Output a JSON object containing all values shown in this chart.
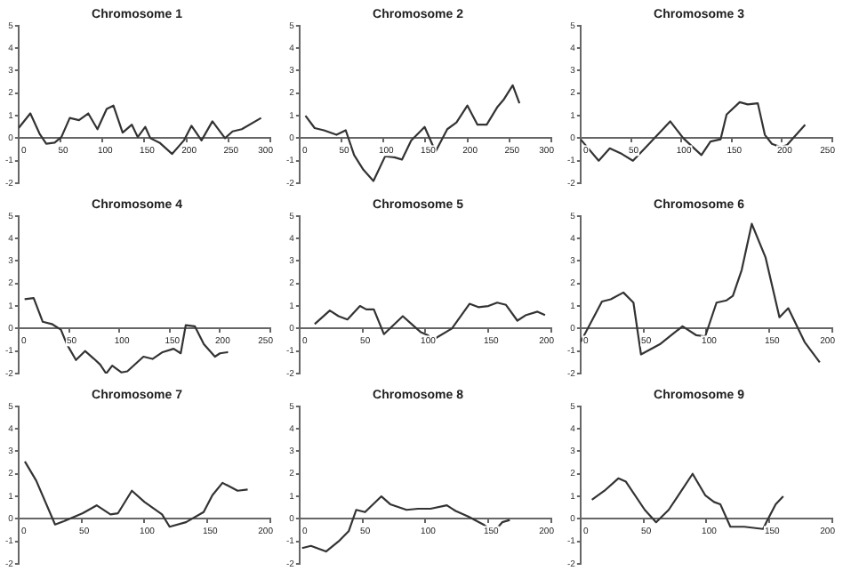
{
  "chart_data": [
    {
      "type": "line",
      "title": "Chromosome 1",
      "color": "#333333",
      "xlim": [
        0,
        300
      ],
      "xticks": [
        0,
        50,
        100,
        150,
        200,
        250,
        300
      ],
      "ylim": [
        -2,
        5
      ],
      "yticks": [
        -2,
        -1,
        0,
        1,
        2,
        3,
        4,
        5
      ],
      "x": [
        0,
        14,
        25,
        33,
        43,
        51,
        61,
        72,
        83,
        94,
        105,
        113,
        124,
        135,
        142,
        151,
        157,
        168,
        183,
        197,
        206,
        218,
        231,
        246,
        255,
        266,
        289
      ],
      "values": [
        0.45,
        1.1,
        0.2,
        -0.25,
        -0.2,
        0.05,
        0.9,
        0.8,
        1.1,
        0.4,
        1.3,
        1.45,
        0.25,
        0.6,
        0.05,
        0.5,
        0,
        -0.2,
        -0.7,
        -0.1,
        0.55,
        -0.1,
        0.75,
        0,
        0.3,
        0.4,
        0.9
      ]
    },
    {
      "type": "line",
      "title": "Chromosome 2",
      "color": "#333333",
      "xlim": [
        0,
        300
      ],
      "xticks": [
        0,
        50,
        100,
        150,
        200,
        250,
        300
      ],
      "ylim": [
        -2,
        5
      ],
      "yticks": [
        -2,
        -1,
        0,
        1,
        2,
        3,
        4,
        5
      ],
      "x": [
        7,
        18,
        29,
        44,
        55,
        65,
        76,
        88,
        102,
        113,
        122,
        133,
        149,
        162,
        176,
        187,
        200,
        212,
        223,
        236,
        243,
        254,
        262
      ],
      "values": [
        1.0,
        0.45,
        0.35,
        0.15,
        0.35,
        -0.75,
        -1.4,
        -1.9,
        -0.8,
        -0.85,
        -0.95,
        -0.1,
        0.5,
        -0.6,
        0.4,
        0.7,
        1.45,
        0.6,
        0.6,
        1.4,
        1.7,
        2.35,
        1.55
      ]
    },
    {
      "type": "line",
      "title": "Chromosome 3",
      "color": "#333333",
      "xlim": [
        0,
        250
      ],
      "xticks": [
        0,
        50,
        100,
        150,
        200,
        250
      ],
      "ylim": [
        -2,
        5
      ],
      "yticks": [
        -2,
        -1,
        0,
        1,
        2,
        3,
        4,
        5
      ],
      "x": [
        0,
        18,
        29,
        41,
        52,
        68,
        89,
        102,
        120,
        129,
        139,
        145,
        158,
        166,
        176,
        183,
        190,
        199,
        205,
        223
      ],
      "values": [
        -0.05,
        -1.0,
        -0.45,
        -0.7,
        -1.0,
        -0.25,
        0.75,
        0,
        -0.75,
        -0.15,
        -0.05,
        1.05,
        1.6,
        1.5,
        1.55,
        0.15,
        -0.25,
        -0.4,
        -0.3,
        0.6
      ]
    },
    {
      "type": "line",
      "title": "Chromosome 4",
      "color": "#333333",
      "xlim": [
        0,
        250
      ],
      "xticks": [
        0,
        50,
        100,
        150,
        200,
        250
      ],
      "ylim": [
        -2,
        5
      ],
      "yticks": [
        -2,
        -1,
        0,
        1,
        2,
        3,
        4,
        5
      ],
      "x": [
        6,
        15,
        24,
        33,
        42,
        48,
        57,
        66,
        75,
        81,
        87,
        93,
        102,
        108,
        124,
        133,
        143,
        154,
        161,
        166,
        175,
        184,
        195,
        200,
        208
      ],
      "values": [
        1.3,
        1.35,
        0.3,
        0.2,
        -0.05,
        -0.7,
        -1.4,
        -1.0,
        -1.35,
        -1.6,
        -2.0,
        -1.65,
        -1.95,
        -1.9,
        -1.25,
        -1.35,
        -1.05,
        -0.9,
        -1.1,
        0.15,
        0.1,
        -0.7,
        -1.25,
        -1.1,
        -1.05
      ]
    },
    {
      "type": "line",
      "title": "Chromosome 5",
      "color": "#333333",
      "xlim": [
        0,
        200
      ],
      "xticks": [
        0,
        50,
        100,
        150,
        200
      ],
      "ylim": [
        -2,
        5
      ],
      "yticks": [
        -2,
        -1,
        0,
        1,
        2,
        3,
        4,
        5
      ],
      "x": [
        12,
        24,
        31,
        38,
        48,
        53,
        59,
        67,
        82,
        89,
        96,
        102,
        106,
        121,
        135,
        142,
        150,
        157,
        164,
        173,
        180,
        189,
        195
      ],
      "values": [
        0.2,
        0.8,
        0.55,
        0.4,
        1.0,
        0.85,
        0.85,
        -0.25,
        0.55,
        0.2,
        -0.15,
        -0.3,
        -0.5,
        0,
        1.1,
        0.95,
        1.0,
        1.15,
        1.05,
        0.35,
        0.6,
        0.75,
        0.6
      ]
    },
    {
      "type": "line",
      "title": "Chromosome 6",
      "color": "#333333",
      "xlim": [
        0,
        200
      ],
      "xticks": [
        0,
        50,
        100,
        150,
        200
      ],
      "ylim": [
        -2,
        5
      ],
      "yticks": [
        -2,
        -1,
        0,
        1,
        2,
        3,
        4,
        5
      ],
      "x": [
        0,
        17,
        24,
        34,
        42,
        48,
        63,
        72,
        81,
        92,
        99,
        108,
        116,
        121,
        128,
        136,
        147,
        158,
        165,
        178,
        190
      ],
      "values": [
        -0.6,
        1.2,
        1.3,
        1.6,
        1.15,
        -1.15,
        -0.7,
        -0.3,
        0.1,
        -0.3,
        -0.35,
        1.15,
        1.25,
        1.45,
        2.6,
        4.65,
        3.15,
        0.5,
        0.9,
        -0.6,
        -1.5
      ]
    },
    {
      "type": "line",
      "title": "Chromosome 7",
      "color": "#333333",
      "xlim": [
        0,
        200
      ],
      "xticks": [
        0,
        50,
        100,
        150,
        200
      ],
      "ylim": [
        -2,
        5
      ],
      "yticks": [
        -2,
        -1,
        0,
        1,
        2,
        3,
        4,
        5
      ],
      "x": [
        5,
        14,
        29,
        36,
        51,
        62,
        73,
        79,
        90,
        100,
        114,
        120,
        133,
        147,
        154,
        162,
        174,
        182
      ],
      "values": [
        2.55,
        1.7,
        -0.25,
        -0.1,
        0.25,
        0.6,
        0.2,
        0.25,
        1.25,
        0.75,
        0.2,
        -0.35,
        -0.15,
        0.3,
        1.05,
        1.6,
        1.25,
        1.3
      ]
    },
    {
      "type": "line",
      "title": "Chromosome 8",
      "color": "#333333",
      "xlim": [
        0,
        200
      ],
      "xticks": [
        0,
        50,
        100,
        150,
        200
      ],
      "ylim": [
        -2,
        5
      ],
      "yticks": [
        -2,
        -1,
        0,
        1,
        2,
        3,
        4,
        5
      ],
      "x": [
        2,
        9,
        21,
        31,
        39,
        45,
        52,
        65,
        72,
        85,
        94,
        104,
        117,
        124,
        134,
        146,
        154,
        161,
        167
      ],
      "values": [
        -1.3,
        -1.2,
        -1.45,
        -1.0,
        -0.55,
        0.4,
        0.3,
        1.0,
        0.65,
        0.4,
        0.45,
        0.45,
        0.6,
        0.35,
        0.1,
        -0.25,
        -0.6,
        -0.15,
        -0.05
      ]
    },
    {
      "type": "line",
      "title": "Chromosome 9",
      "color": "#333333",
      "xlim": [
        0,
        200
      ],
      "xticks": [
        0,
        50,
        100,
        150,
        200
      ],
      "ylim": [
        -2,
        5
      ],
      "yticks": [
        -2,
        -1,
        0,
        1,
        2,
        3,
        4,
        5
      ],
      "x": [
        9,
        19,
        30,
        36,
        51,
        60,
        70,
        89,
        99,
        106,
        111,
        119,
        130,
        145,
        148,
        155,
        161
      ],
      "values": [
        0.85,
        1.25,
        1.8,
        1.65,
        0.4,
        -0.15,
        0.4,
        2.0,
        1.05,
        0.75,
        0.65,
        -0.35,
        -0.35,
        -0.45,
        -0.1,
        0.65,
        1.0
      ]
    }
  ]
}
